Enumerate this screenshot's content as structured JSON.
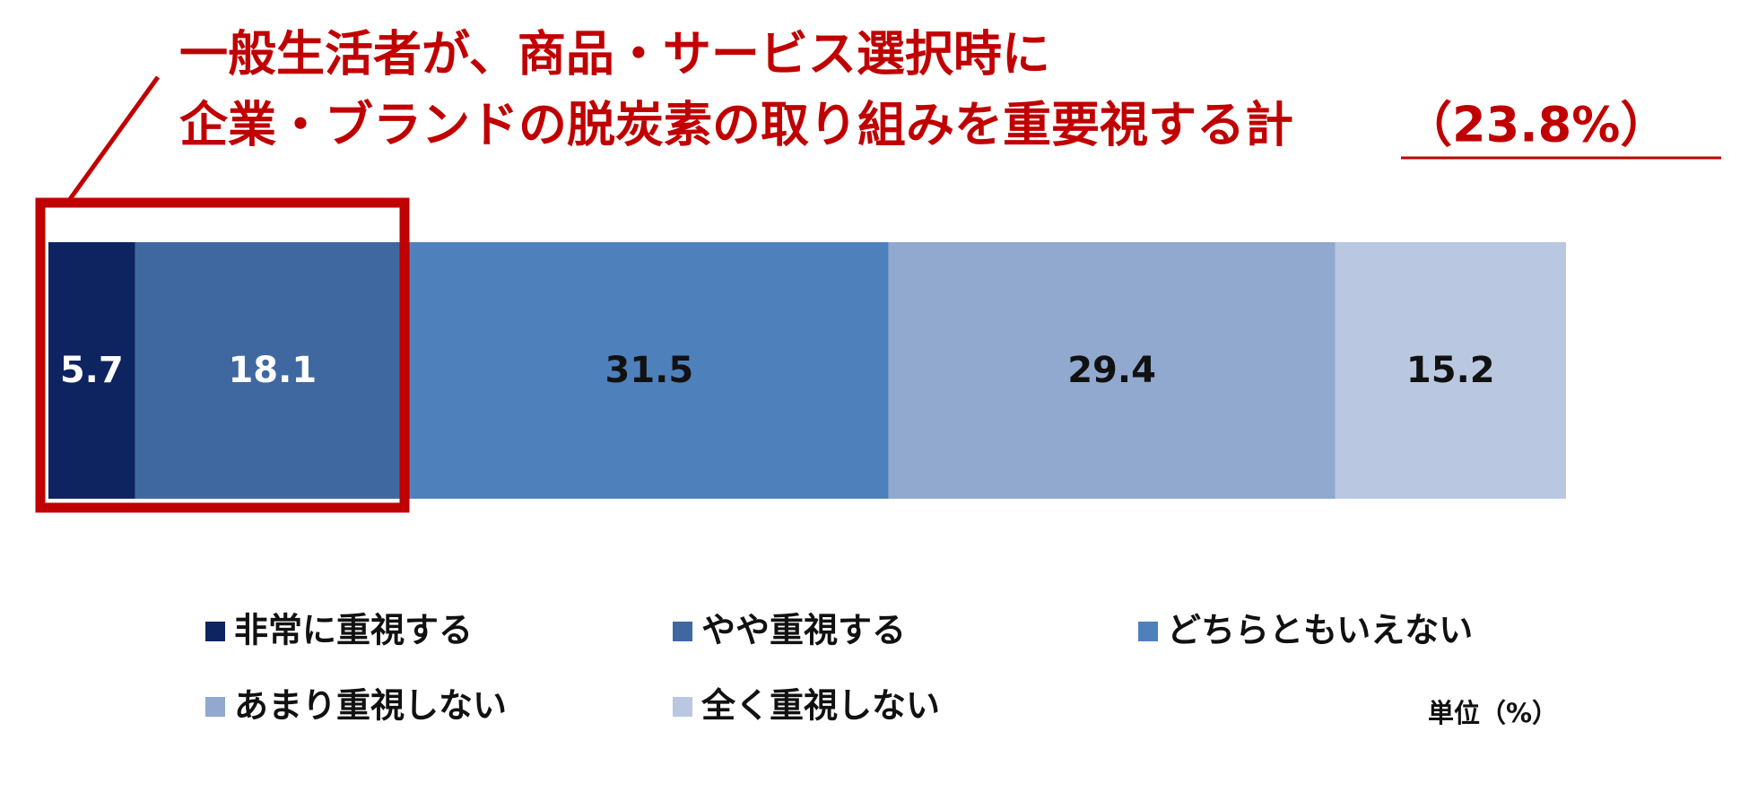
{
  "chart_data": {
    "type": "stacked-bar-horizontal",
    "title_lines": [
      "一般生活者が、商品・サービス選択時に",
      "企業・ブランドの脱炭素の取り組みを重要視する計"
    ],
    "title_highlight": "（23.8%）",
    "series": [
      {
        "name": "非常に重視する",
        "color": "#0d2461",
        "label_color": "#ffffff",
        "values": [
          5.7
        ]
      },
      {
        "name": "やや重視する",
        "color": "#3f68a0",
        "label_color": "#ffffff",
        "values": [
          18.1
        ]
      },
      {
        "name": "どちらともいえない",
        "color": "#4e80bb",
        "label_color": "#111111",
        "values": [
          31.5
        ]
      },
      {
        "name": "あまり重視しない",
        "color": "#91a8cf",
        "label_color": "#111111",
        "values": [
          29.4
        ]
      },
      {
        "name": "全く重視しない",
        "color": "#b9c7e1",
        "label_color": "#111111",
        "values": [
          15.2
        ]
      }
    ],
    "unit_label": "単位（%）"
  }
}
